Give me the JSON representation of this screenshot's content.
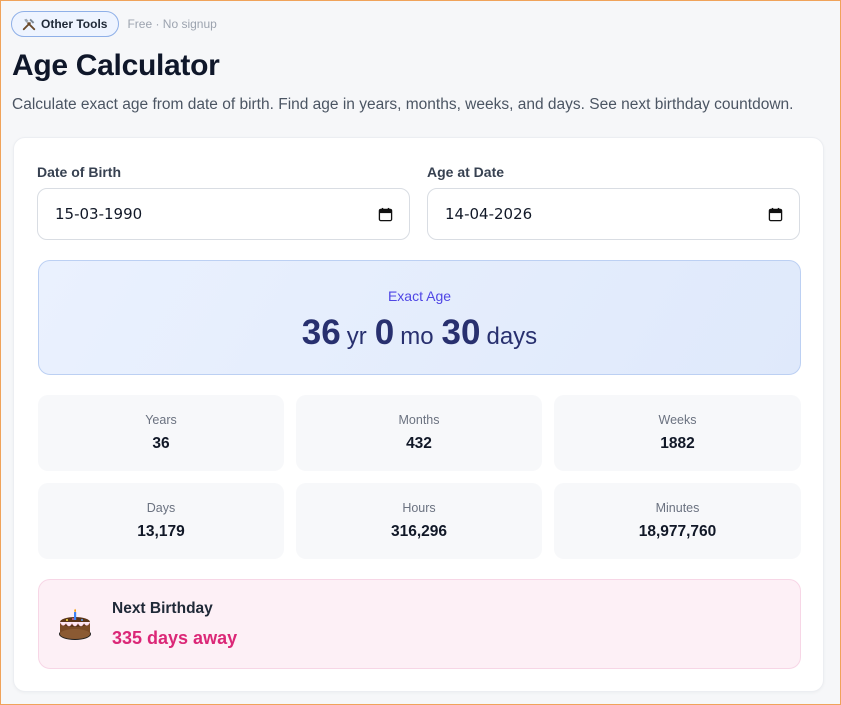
{
  "header": {
    "tools_label": "Other Tools",
    "badge": "Free · No signup",
    "title": "Age Calculator",
    "subtitle": "Calculate exact age from date of birth. Find age in years, months, weeks, and days. See next birthday countdown."
  },
  "form": {
    "dob_label": "Date of Birth",
    "dob_value": "15-03-1990",
    "at_label": "Age at Date",
    "at_value": "14-04-2026"
  },
  "exact": {
    "label": "Exact Age",
    "years": "36",
    "years_unit": "yr",
    "months": "0",
    "months_unit": "mo",
    "days": "30",
    "days_unit": "days"
  },
  "stats": [
    {
      "label": "Years",
      "value": "36"
    },
    {
      "label": "Months",
      "value": "432"
    },
    {
      "label": "Weeks",
      "value": "1882"
    },
    {
      "label": "Days",
      "value": "13,179"
    },
    {
      "label": "Hours",
      "value": "316,296"
    },
    {
      "label": "Minutes",
      "value": "18,977,760"
    }
  ],
  "birthday": {
    "title": "Next Birthday",
    "days_away": "335 days away",
    "icon": "cake-icon"
  },
  "colors": {
    "accent": "#4f46e5",
    "age_text": "#28306f",
    "birthday_accent": "#db2777"
  }
}
